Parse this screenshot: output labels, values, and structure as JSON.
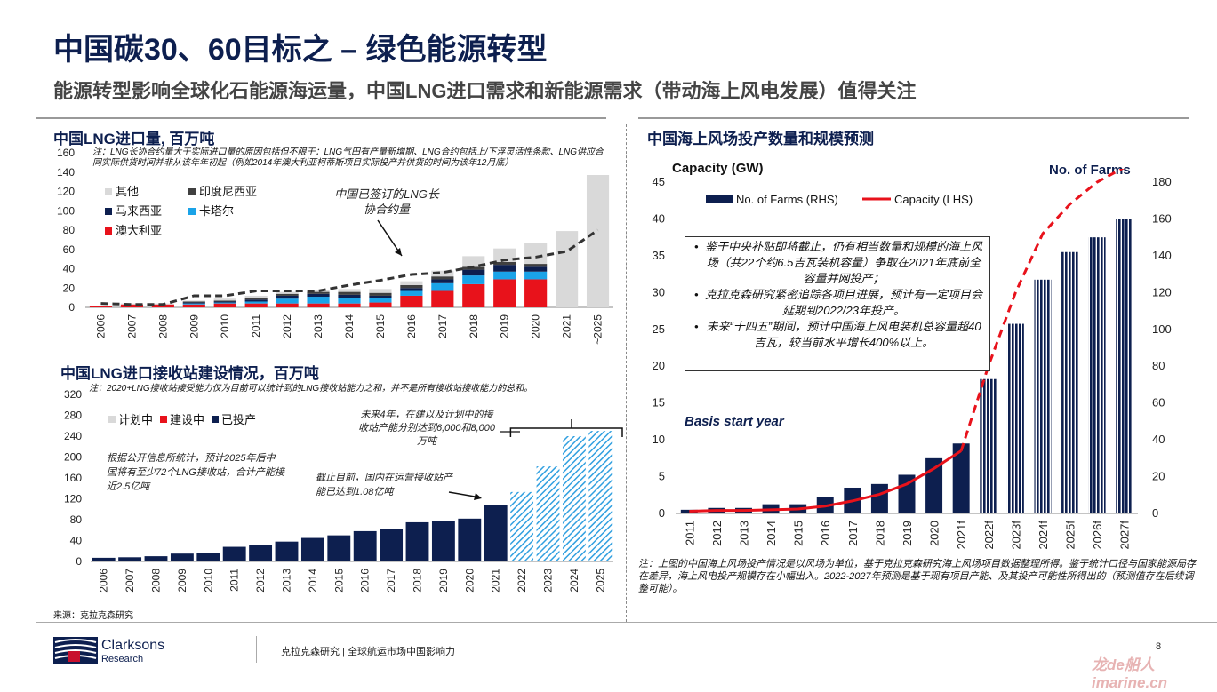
{
  "header": {
    "title": "中国碳30、60目标之 – 绿色能源转型",
    "subtitle": "能源转型影响全球化石能源海运量，中国LNG进口需求和新能源需求（带动海上风电发展）值得关注"
  },
  "colors": {
    "navy": "#0d1f4f",
    "red": "#e8121b",
    "lightblue": "#1aa3e8",
    "gray_other": "#d9d9d9",
    "dark_indonesia": "#404040",
    "hatch_blue": "#31a0e0",
    "dashed_line": "#333333"
  },
  "chart1": {
    "title": "中国LNG进口量, 百万吨",
    "note": "注：LNG长协合约量大于实际进口量的原因包括但不限于：LNG气田有产量新增期、LNG合约包括上/下浮灵活性条款、LNG供应合同实际供货时间并非从该年年初起（例如2014年澳大利亚柯蒂斯项目实际投产并供货的时间为该年12月底）",
    "annotation": "中国已签订的LNG长协合约量"
  },
  "chart2": {
    "title": "中国LNG进口接收站建设情况，百万吨",
    "note": "注：2020+LNG接收站接受能力仅为目前可以统计到的LNG接收站能力之和，并不是所有接收站接收能力的总和。",
    "ann_left": "根据公开信息所统计，预计2025年后中国将有至少72个LNG接收站，合计产能接近2.5亿吨",
    "ann_mid": "截止目前，国内在运营接收站产能已达到1.08亿吨",
    "ann_top": "未来4年，在建以及计划中的接收站产能分别达到6,000和8,000万吨"
  },
  "chart3": {
    "title": "中国海上风场投产数量和规模预测",
    "left_axis_label": "Capacity (GW)",
    "right_axis_label": "No. of Farms",
    "basis_label": "Basis start year",
    "bullets": [
      "鉴于中央补贴即将截止，仍有相当数量和规模的海上风场（共22个约6.5吉瓦装机容量）争取在2021年底前全容量并网投产；",
      "克拉克森研究紧密追踪各项目进展，预计有一定项目会延期到2022/23年投产。",
      "未来“十四五”期间，预计中国海上风电装机总容量超40吉瓦，较当前水平增长400%以上。"
    ],
    "note": "注：上图的中国海上风场投产情况是以风场为单位，基于克拉克森研究海上风场项目数据整理所得。鉴于统计口径与国家能源局存在差异，海上风电投产规模存在小幅出入。2022-2027年预测是基于现有项目产能、及其投产可能性所得出的（预测值存在后续调整可能）。"
  },
  "footer": {
    "source": "来源：克拉克森研究",
    "logo_name": "Clarksons",
    "logo_sub": "Research",
    "text": "克拉克森研究 | 全球航运市场中国影响力",
    "page": "8",
    "watermark": "龙de船人 imarine.cn"
  },
  "chart_data": [
    {
      "type": "bar",
      "title": "中国LNG进口量, 百万吨",
      "stacked": true,
      "categories": [
        "2006",
        "2007",
        "2008",
        "2009",
        "2010",
        "2011",
        "2012",
        "2013",
        "2014",
        "2015",
        "2016",
        "2017",
        "2018",
        "2019",
        "2020",
        "2021",
        "~2025"
      ],
      "ylim": [
        0,
        160
      ],
      "yticks": [
        0,
        20,
        40,
        60,
        80,
        100,
        120,
        140,
        160
      ],
      "legend": "top-left",
      "series": [
        {
          "name": "澳大利亚",
          "color": "#e8121b",
          "values": [
            1,
            3,
            3,
            3,
            4,
            4,
            4,
            4,
            4,
            5,
            12,
            17,
            24,
            29,
            29,
            0,
            0
          ]
        },
        {
          "name": "卡塔尔",
          "color": "#1aa3e8",
          "values": [
            0,
            0,
            0,
            1,
            1,
            2,
            5,
            7,
            6,
            5,
            5,
            8,
            9,
            8,
            8,
            0,
            0
          ]
        },
        {
          "name": "马来西亚",
          "color": "#0d1f4f",
          "values": [
            0,
            0,
            0,
            1,
            1,
            2,
            3,
            3,
            3,
            2,
            3,
            4,
            6,
            7,
            5,
            0,
            0
          ]
        },
        {
          "name": "印度尼西亚",
          "color": "#404040",
          "values": [
            0,
            0,
            0,
            1,
            1,
            2,
            2,
            2,
            3,
            3,
            3,
            3,
            3,
            3,
            3,
            0,
            0
          ]
        },
        {
          "name": "其他",
          "color": "#d9d9d9",
          "values": [
            0,
            1,
            1,
            1,
            2,
            2,
            2,
            2,
            3,
            4,
            4,
            6,
            11,
            14,
            22,
            79,
            137
          ]
        }
      ],
      "line": {
        "name": "中国已签订的LNG长协合约量",
        "values": [
          4,
          3,
          3,
          12,
          12,
          17,
          17,
          17,
          23,
          28,
          34,
          36,
          42,
          49,
          52,
          58,
          80
        ]
      }
    },
    {
      "type": "bar",
      "title": "中国LNG进口接收站建设情况，百万吨",
      "categories": [
        "2006",
        "2007",
        "2008",
        "2009",
        "2010",
        "2011",
        "2012",
        "2013",
        "2014",
        "2015",
        "2016",
        "2017",
        "2018",
        "2019",
        "2020",
        "2021",
        "2022",
        "2023",
        "2024",
        "2025"
      ],
      "ylim": [
        0,
        320
      ],
      "yticks": [
        0,
        40,
        80,
        120,
        160,
        200,
        240,
        280,
        320
      ],
      "legend": "top-left",
      "legend_items": [
        {
          "name": "计划中",
          "color": "#d9d9d9"
        },
        {
          "name": "建设中",
          "color": "#e8121b"
        },
        {
          "name": "已投产",
          "color": "#0d1f4f"
        }
      ],
      "series": [
        {
          "name": "已投产",
          "values": [
            7,
            8,
            10,
            15,
            17,
            28,
            32,
            38,
            45,
            50,
            58,
            62,
            75,
            78,
            82,
            108,
            0,
            0,
            0,
            0
          ]
        },
        {
          "name": "计划中",
          "values": [
            0,
            0,
            0,
            0,
            0,
            0,
            0,
            0,
            0,
            0,
            0,
            0,
            0,
            0,
            0,
            0,
            133,
            182,
            240,
            250
          ]
        }
      ]
    },
    {
      "type": "bar",
      "title": "中国海上风场投产数量和规模预测",
      "categories": [
        "2011",
        "2012",
        "2013",
        "2014",
        "2015",
        "2016",
        "2017",
        "2018",
        "2019",
        "2020",
        "2021f",
        "2022f",
        "2023f",
        "2024f",
        "2025f",
        "2026f",
        "2027f"
      ],
      "ylim_left": [
        0,
        45
      ],
      "yticks_left": [
        0,
        5,
        10,
        15,
        20,
        25,
        30,
        35,
        40,
        45
      ],
      "ylim_right": [
        0,
        180
      ],
      "yticks_right": [
        0,
        20,
        40,
        60,
        80,
        100,
        120,
        140,
        160,
        180
      ],
      "legend": "top",
      "series": [
        {
          "name": "No. of Farms (RHS)",
          "axis": "right",
          "color": "#0d1f4f",
          "values": [
            2,
            3,
            3,
            5,
            5,
            9,
            14,
            16,
            21,
            30,
            38,
            73,
            103,
            127,
            142,
            150,
            160
          ]
        },
        {
          "name": "Capacity (LHS)",
          "axis": "left",
          "type": "line",
          "color": "#e8121b",
          "values": [
            0.3,
            0.4,
            0.4,
            0.5,
            0.6,
            1.0,
            1.7,
            2.6,
            4.0,
            6.1,
            8.5,
            20,
            30,
            38,
            42,
            45,
            47
          ]
        }
      ]
    }
  ]
}
